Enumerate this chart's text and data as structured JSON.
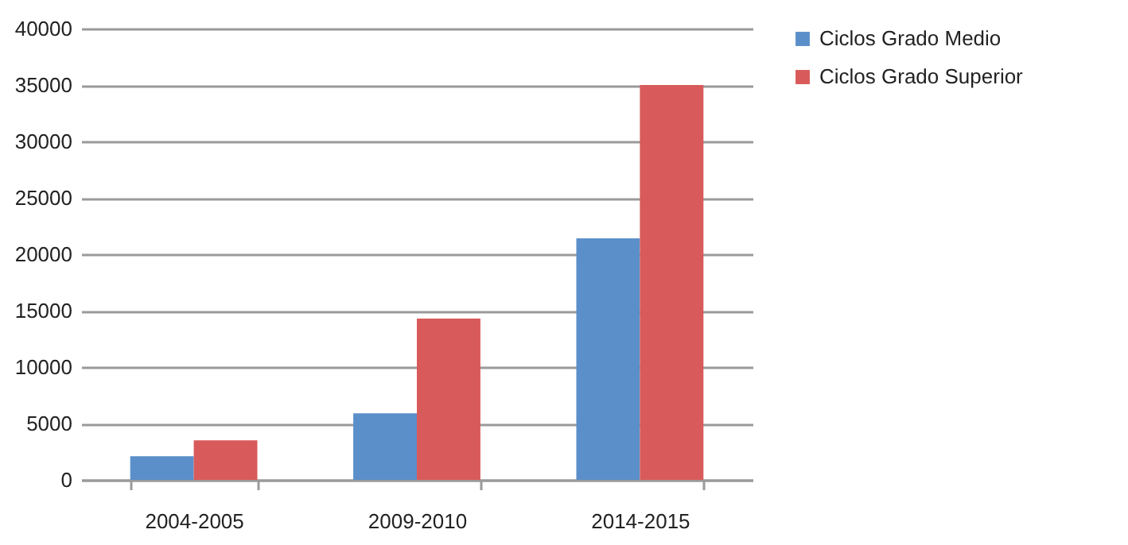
{
  "chart_data": {
    "type": "bar",
    "categories": [
      "2004-2005",
      "2009-2010",
      "2014-2015"
    ],
    "series": [
      {
        "name": "Ciclos Grado Medio",
        "color": "#5b8fc9",
        "values": [
          2100,
          5900,
          21400
        ]
      },
      {
        "name": "Ciclos Grado Superior",
        "color": "#d95a5a",
        "values": [
          3500,
          14300,
          35000
        ]
      }
    ],
    "ylim": [
      0,
      40000
    ],
    "yticks": [
      0,
      5000,
      10000,
      15000,
      20000,
      25000,
      30000,
      35000,
      40000
    ],
    "grid": "y",
    "legend": "right"
  }
}
